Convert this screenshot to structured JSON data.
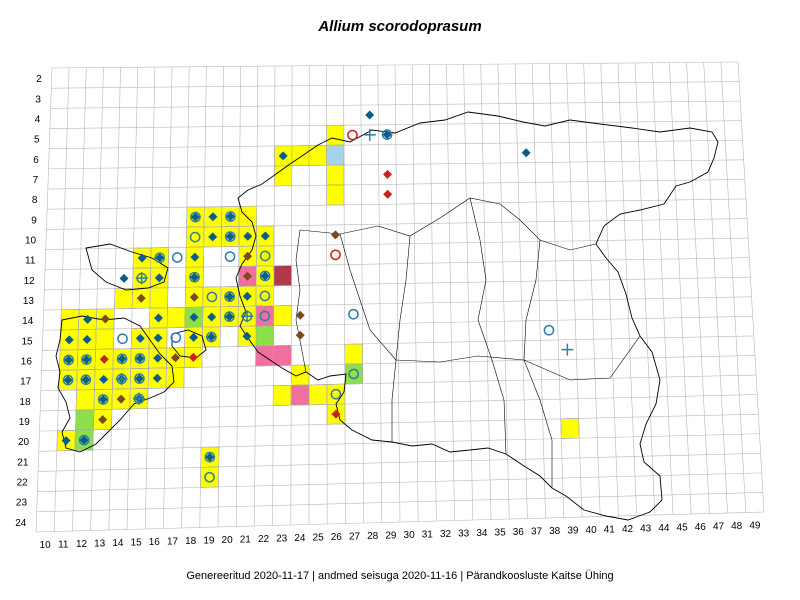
{
  "title": "Allium scorodoprasum",
  "footer": {
    "generated": "Genereeritud 2020-11-17",
    "data_state": "andmed seisuga 2020-11-16",
    "organization": "Pärandkoosluste Kaitse Ühing",
    "separator": "|"
  },
  "grid": {
    "row_labels": [
      "2",
      "3",
      "4",
      "5",
      "6",
      "7",
      "8",
      "9",
      "10",
      "11",
      "12",
      "13",
      "14",
      "15",
      "16",
      "17",
      "18",
      "19",
      "20",
      "21",
      "22",
      "23",
      "24"
    ],
    "col_labels": [
      "10",
      "11",
      "12",
      "13",
      "14",
      "15",
      "16",
      "17",
      "18",
      "19",
      "20",
      "21",
      "22",
      "23",
      "24",
      "25",
      "26",
      "27",
      "28",
      "29",
      "30",
      "31",
      "32",
      "33",
      "34",
      "35",
      "36",
      "37",
      "38",
      "39",
      "40",
      "41",
      "42",
      "43",
      "44",
      "45",
      "46",
      "47",
      "48",
      "49"
    ]
  },
  "colors": {
    "cell_yellow": "#ffff00",
    "cell_pink": "#f06ea0",
    "cell_light_blue": "#a6d4ea",
    "cell_light_green": "#8ee04a",
    "cell_dark_red": "#b03a48",
    "symbol_blue": "#0a5c8a",
    "symbol_brown": "#7a4a1e",
    "symbol_red": "#cc1f1f",
    "symbol_teal": "#2a7fa8",
    "grid_line": "#b8b8b8",
    "border_line": "#000000"
  },
  "legend_symbols": {
    "diamond_blue": "recent record (blue diamond)",
    "diamond_brown": "older record (brown diamond)",
    "diamond_red": "record (red diamond)",
    "circle_blue": "open circle",
    "circle_red": "red open circle",
    "cross": "cross marker"
  },
  "cells": [
    {
      "c": "23",
      "r": "6",
      "color": "cell_yellow"
    },
    {
      "c": "24",
      "r": "6",
      "color": "cell_yellow"
    },
    {
      "c": "26",
      "r": "5",
      "color": "cell_yellow"
    },
    {
      "c": "26",
      "r": "6",
      "color": "cell_light_blue"
    },
    {
      "c": "25",
      "r": "6",
      "color": "cell_yellow"
    },
    {
      "c": "23",
      "r": "7",
      "color": "cell_yellow"
    },
    {
      "c": "26",
      "r": "7",
      "color": "cell_yellow"
    },
    {
      "c": "26",
      "r": "8",
      "color": "cell_yellow"
    },
    {
      "c": "18",
      "r": "9",
      "color": "cell_yellow"
    },
    {
      "c": "19",
      "r": "9",
      "color": "cell_yellow"
    },
    {
      "c": "20",
      "r": "9",
      "color": "cell_yellow"
    },
    {
      "c": "21",
      "r": "9",
      "color": "cell_yellow"
    },
    {
      "c": "18",
      "r": "10",
      "color": "cell_yellow"
    },
    {
      "c": "19",
      "r": "10",
      "color": "cell_yellow"
    },
    {
      "c": "20",
      "r": "10",
      "color": "cell_yellow"
    },
    {
      "c": "21",
      "r": "10",
      "color": "cell_yellow"
    },
    {
      "c": "22",
      "r": "10",
      "color": "cell_yellow"
    },
    {
      "c": "15",
      "r": "11",
      "color": "cell_yellow"
    },
    {
      "c": "16",
      "r": "11",
      "color": "cell_yellow"
    },
    {
      "c": "18",
      "r": "11",
      "color": "cell_yellow"
    },
    {
      "c": "21",
      "r": "11",
      "color": "cell_yellow"
    },
    {
      "c": "22",
      "r": "11",
      "color": "cell_yellow"
    },
    {
      "c": "15",
      "r": "12",
      "color": "cell_yellow"
    },
    {
      "c": "16",
      "r": "12",
      "color": "cell_yellow"
    },
    {
      "c": "18",
      "r": "12",
      "color": "cell_yellow"
    },
    {
      "c": "21",
      "r": "12",
      "color": "cell_pink"
    },
    {
      "c": "22",
      "r": "12",
      "color": "cell_yellow"
    },
    {
      "c": "23",
      "r": "12",
      "color": "cell_dark_red"
    },
    {
      "c": "14",
      "r": "13",
      "color": "cell_yellow"
    },
    {
      "c": "15",
      "r": "13",
      "color": "cell_yellow"
    },
    {
      "c": "16",
      "r": "13",
      "color": "cell_yellow"
    },
    {
      "c": "18",
      "r": "13",
      "color": "cell_yellow"
    },
    {
      "c": "19",
      "r": "13",
      "color": "cell_yellow"
    },
    {
      "c": "20",
      "r": "13",
      "color": "cell_yellow"
    },
    {
      "c": "21",
      "r": "13",
      "color": "cell_yellow"
    },
    {
      "c": "22",
      "r": "13",
      "color": "cell_yellow"
    },
    {
      "c": "11",
      "r": "14",
      "color": "cell_yellow"
    },
    {
      "c": "12",
      "r": "14",
      "color": "cell_yellow"
    },
    {
      "c": "13",
      "r": "14",
      "color": "cell_yellow"
    },
    {
      "c": "16",
      "r": "14",
      "color": "cell_yellow"
    },
    {
      "c": "17",
      "r": "14",
      "color": "cell_yellow"
    },
    {
      "c": "18",
      "r": "14",
      "color": "cell_light_green"
    },
    {
      "c": "19",
      "r": "14",
      "color": "cell_yellow"
    },
    {
      "c": "20",
      "r": "14",
      "color": "cell_yellow"
    },
    {
      "c": "21",
      "r": "14",
      "color": "cell_yellow"
    },
    {
      "c": "22",
      "r": "14",
      "color": "cell_pink"
    },
    {
      "c": "23",
      "r": "14",
      "color": "cell_yellow"
    },
    {
      "c": "11",
      "r": "15",
      "color": "cell_yellow"
    },
    {
      "c": "12",
      "r": "15",
      "color": "cell_yellow"
    },
    {
      "c": "13",
      "r": "15",
      "color": "cell_yellow"
    },
    {
      "c": "15",
      "r": "15",
      "color": "cell_yellow"
    },
    {
      "c": "16",
      "r": "15",
      "color": "cell_yellow"
    },
    {
      "c": "18",
      "r": "15",
      "color": "cell_yellow"
    },
    {
      "c": "19",
      "r": "15",
      "color": "cell_yellow"
    },
    {
      "c": "21",
      "r": "15",
      "color": "cell_yellow"
    },
    {
      "c": "22",
      "r": "15",
      "color": "cell_light_green"
    },
    {
      "c": "11",
      "r": "16",
      "color": "cell_yellow"
    },
    {
      "c": "12",
      "r": "16",
      "color": "cell_yellow"
    },
    {
      "c": "13",
      "r": "16",
      "color": "cell_yellow"
    },
    {
      "c": "14",
      "r": "16",
      "color": "cell_yellow"
    },
    {
      "c": "15",
      "r": "16",
      "color": "cell_yellow"
    },
    {
      "c": "16",
      "r": "16",
      "color": "cell_yellow"
    },
    {
      "c": "17",
      "r": "16",
      "color": "cell_yellow"
    },
    {
      "c": "18",
      "r": "16",
      "color": "cell_yellow"
    },
    {
      "c": "22",
      "r": "16",
      "color": "cell_pink"
    },
    {
      "c": "23",
      "r": "16",
      "color": "cell_pink"
    },
    {
      "c": "27",
      "r": "16",
      "color": "cell_yellow"
    },
    {
      "c": "11",
      "r": "17",
      "color": "cell_yellow"
    },
    {
      "c": "12",
      "r": "17",
      "color": "cell_yellow"
    },
    {
      "c": "13",
      "r": "17",
      "color": "cell_yellow"
    },
    {
      "c": "14",
      "r": "17",
      "color": "cell_yellow"
    },
    {
      "c": "15",
      "r": "17",
      "color": "cell_yellow"
    },
    {
      "c": "16",
      "r": "17",
      "color": "cell_yellow"
    },
    {
      "c": "17",
      "r": "17",
      "color": "cell_yellow"
    },
    {
      "c": "24",
      "r": "17",
      "color": "cell_yellow"
    },
    {
      "c": "27",
      "r": "17",
      "color": "cell_light_green"
    },
    {
      "c": "12",
      "r": "18",
      "color": "cell_yellow"
    },
    {
      "c": "13",
      "r": "18",
      "color": "cell_yellow"
    },
    {
      "c": "14",
      "r": "18",
      "color": "cell_yellow"
    },
    {
      "c": "15",
      "r": "18",
      "color": "cell_yellow"
    },
    {
      "c": "23",
      "r": "18",
      "color": "cell_yellow"
    },
    {
      "c": "24",
      "r": "18",
      "color": "cell_pink"
    },
    {
      "c": "25",
      "r": "18",
      "color": "cell_yellow"
    },
    {
      "c": "26",
      "r": "18",
      "color": "cell_yellow"
    },
    {
      "c": "12",
      "r": "19",
      "color": "cell_light_green"
    },
    {
      "c": "13",
      "r": "19",
      "color": "cell_yellow"
    },
    {
      "c": "26",
      "r": "19",
      "color": "cell_yellow"
    },
    {
      "c": "11",
      "r": "20",
      "color": "cell_yellow"
    },
    {
      "c": "12",
      "r": "20",
      "color": "cell_light_green"
    },
    {
      "c": "39",
      "r": "20",
      "color": "cell_yellow"
    },
    {
      "c": "19",
      "r": "21",
      "color": "cell_yellow"
    },
    {
      "c": "19",
      "r": "22",
      "color": "cell_yellow"
    }
  ],
  "markers": [
    {
      "c": "23",
      "r": "6",
      "sym": "diamond_blue"
    },
    {
      "c": "28",
      "r": "4",
      "sym": "diamond_blue"
    },
    {
      "c": "27",
      "r": "5",
      "sym": "circle_red"
    },
    {
      "c": "28",
      "r": "5",
      "sym": "cross"
    },
    {
      "c": "29",
      "r": "5",
      "sym": "diamond_blue"
    },
    {
      "c": "29",
      "r": "5",
      "sym": "circle_blue"
    },
    {
      "c": "37",
      "r": "6",
      "sym": "diamond_blue"
    },
    {
      "c": "29",
      "r": "7",
      "sym": "diamond_red"
    },
    {
      "c": "29",
      "r": "8",
      "sym": "diamond_red"
    },
    {
      "c": "26",
      "r": "10",
      "sym": "diamond_brown"
    },
    {
      "c": "26",
      "r": "10",
      "sym": "circle_red",
      "dy": "1"
    },
    {
      "c": "18",
      "r": "9",
      "sym": "diamond_blue"
    },
    {
      "c": "18",
      "r": "9",
      "sym": "circle_blue"
    },
    {
      "c": "19",
      "r": "9",
      "sym": "diamond_blue"
    },
    {
      "c": "20",
      "r": "9",
      "sym": "diamond_blue"
    },
    {
      "c": "20",
      "r": "9",
      "sym": "circle_blue"
    },
    {
      "c": "18",
      "r": "10",
      "sym": "circle_blue"
    },
    {
      "c": "19",
      "r": "10",
      "sym": "diamond_blue"
    },
    {
      "c": "20",
      "r": "10",
      "sym": "diamond_blue"
    },
    {
      "c": "20",
      "r": "10",
      "sym": "circle_blue"
    },
    {
      "c": "21",
      "r": "10",
      "sym": "diamond_blue"
    },
    {
      "c": "22",
      "r": "10",
      "sym": "diamond_blue"
    },
    {
      "c": "15",
      "r": "11",
      "sym": "diamond_blue"
    },
    {
      "c": "16",
      "r": "11",
      "sym": "diamond_blue"
    },
    {
      "c": "16",
      "r": "11",
      "sym": "circle_blue"
    },
    {
      "c": "17",
      "r": "11",
      "sym": "circle_blue"
    },
    {
      "c": "18",
      "r": "11",
      "sym": "diamond_blue"
    },
    {
      "c": "20",
      "r": "11",
      "sym": "circle_blue"
    },
    {
      "c": "21",
      "r": "11",
      "sym": "diamond_brown"
    },
    {
      "c": "22",
      "r": "11",
      "sym": "circle_blue"
    },
    {
      "c": "14",
      "r": "12",
      "sym": "diamond_blue"
    },
    {
      "c": "15",
      "r": "12",
      "sym": "circle_blue"
    },
    {
      "c": "15",
      "r": "12",
      "sym": "cross"
    },
    {
      "c": "16",
      "r": "12",
      "sym": "diamond_blue"
    },
    {
      "c": "18",
      "r": "12",
      "sym": "circle_blue"
    },
    {
      "c": "18",
      "r": "12",
      "sym": "diamond_blue"
    },
    {
      "c": "21",
      "r": "12",
      "sym": "diamond_brown"
    },
    {
      "c": "22",
      "r": "12",
      "sym": "circle_blue"
    },
    {
      "c": "22",
      "r": "12",
      "sym": "diamond_blue"
    },
    {
      "c": "15",
      "r": "13",
      "sym": "diamond_brown"
    },
    {
      "c": "18",
      "r": "13",
      "sym": "diamond_brown"
    },
    {
      "c": "19",
      "r": "13",
      "sym": "circle_blue"
    },
    {
      "c": "20",
      "r": "13",
      "sym": "circle_blue"
    },
    {
      "c": "20",
      "r": "13",
      "sym": "diamond_blue"
    },
    {
      "c": "21",
      "r": "13",
      "sym": "diamond_blue"
    },
    {
      "c": "22",
      "r": "13",
      "sym": "circle_blue"
    },
    {
      "c": "12",
      "r": "14",
      "sym": "diamond_blue"
    },
    {
      "c": "13",
      "r": "14",
      "sym": "diamond_brown"
    },
    {
      "c": "16",
      "r": "14",
      "sym": "diamond_blue"
    },
    {
      "c": "18",
      "r": "14",
      "sym": "diamond_blue"
    },
    {
      "c": "19",
      "r": "14",
      "sym": "diamond_blue"
    },
    {
      "c": "20",
      "r": "14",
      "sym": "circle_blue"
    },
    {
      "c": "20",
      "r": "14",
      "sym": "diamond_blue"
    },
    {
      "c": "21",
      "r": "14",
      "sym": "cross"
    },
    {
      "c": "21",
      "r": "14",
      "sym": "circle_blue"
    },
    {
      "c": "22",
      "r": "14",
      "sym": "circle_blue"
    },
    {
      "c": "24",
      "r": "14",
      "sym": "diamond_brown"
    },
    {
      "c": "27",
      "r": "14",
      "sym": "circle_blue"
    },
    {
      "c": "11",
      "r": "15",
      "sym": "diamond_blue"
    },
    {
      "c": "12",
      "r": "15",
      "sym": "diamond_blue"
    },
    {
      "c": "14",
      "r": "15",
      "sym": "circle_blue"
    },
    {
      "c": "15",
      "r": "15",
      "sym": "diamond_blue"
    },
    {
      "c": "16",
      "r": "15",
      "sym": "diamond_blue"
    },
    {
      "c": "17",
      "r": "15",
      "sym": "circle_blue"
    },
    {
      "c": "18",
      "r": "15",
      "sym": "diamond_blue"
    },
    {
      "c": "19",
      "r": "15",
      "sym": "diamond_blue"
    },
    {
      "c": "19",
      "r": "15",
      "sym": "circle_blue"
    },
    {
      "c": "21",
      "r": "15",
      "sym": "diamond_blue"
    },
    {
      "c": "24",
      "r": "15",
      "sym": "diamond_brown"
    },
    {
      "c": "38",
      "r": "15",
      "sym": "circle_blue"
    },
    {
      "c": "11",
      "r": "16",
      "sym": "diamond_blue"
    },
    {
      "c": "11",
      "r": "16",
      "sym": "circle_blue"
    },
    {
      "c": "12",
      "r": "16",
      "sym": "diamond_blue"
    },
    {
      "c": "12",
      "r": "16",
      "sym": "circle_blue"
    },
    {
      "c": "13",
      "r": "16",
      "sym": "diamond_red"
    },
    {
      "c": "14",
      "r": "16",
      "sym": "diamond_blue"
    },
    {
      "c": "14",
      "r": "16",
      "sym": "circle_blue"
    },
    {
      "c": "15",
      "r": "16",
      "sym": "diamond_blue"
    },
    {
      "c": "15",
      "r": "16",
      "sym": "circle_blue"
    },
    {
      "c": "16",
      "r": "16",
      "sym": "diamond_blue"
    },
    {
      "c": "17",
      "r": "16",
      "sym": "diamond_brown"
    },
    {
      "c": "18",
      "r": "16",
      "sym": "diamond_red"
    },
    {
      "c": "39",
      "r": "16",
      "sym": "cross"
    },
    {
      "c": "11",
      "r": "17",
      "sym": "diamond_blue"
    },
    {
      "c": "11",
      "r": "17",
      "sym": "circle_blue"
    },
    {
      "c": "12",
      "r": "17",
      "sym": "diamond_blue"
    },
    {
      "c": "12",
      "r": "17",
      "sym": "circle_blue"
    },
    {
      "c": "13",
      "r": "17",
      "sym": "diamond_blue"
    },
    {
      "c": "14",
      "r": "17",
      "sym": "diamond_blue"
    },
    {
      "c": "14",
      "r": "17",
      "sym": "circle_blue"
    },
    {
      "c": "14",
      "r": "17",
      "sym": "cross"
    },
    {
      "c": "15",
      "r": "17",
      "sym": "diamond_blue"
    },
    {
      "c": "15",
      "r": "17",
      "sym": "circle_blue"
    },
    {
      "c": "16",
      "r": "17",
      "sym": "diamond_blue"
    },
    {
      "c": "27",
      "r": "17",
      "sym": "circle_blue"
    },
    {
      "c": "13",
      "r": "18",
      "sym": "diamond_blue"
    },
    {
      "c": "13",
      "r": "18",
      "sym": "circle_blue"
    },
    {
      "c": "14",
      "r": "18",
      "sym": "diamond_brown"
    },
    {
      "c": "15",
      "r": "18",
      "sym": "diamond_blue"
    },
    {
      "c": "15",
      "r": "18",
      "sym": "circle_blue"
    },
    {
      "c": "15",
      "r": "18",
      "sym": "cross"
    },
    {
      "c": "26",
      "r": "18",
      "sym": "circle_blue"
    },
    {
      "c": "13",
      "r": "19",
      "sym": "diamond_brown"
    },
    {
      "c": "26",
      "r": "19",
      "sym": "diamond_red"
    },
    {
      "c": "11",
      "r": "20",
      "sym": "diamond_blue"
    },
    {
      "c": "12",
      "r": "20",
      "sym": "diamond_blue"
    },
    {
      "c": "12",
      "r": "20",
      "sym": "circle_blue"
    },
    {
      "c": "19",
      "r": "21",
      "sym": "diamond_blue"
    },
    {
      "c": "19",
      "r": "21",
      "sym": "circle_blue"
    },
    {
      "c": "19",
      "r": "22",
      "sym": "circle_blue"
    }
  ]
}
